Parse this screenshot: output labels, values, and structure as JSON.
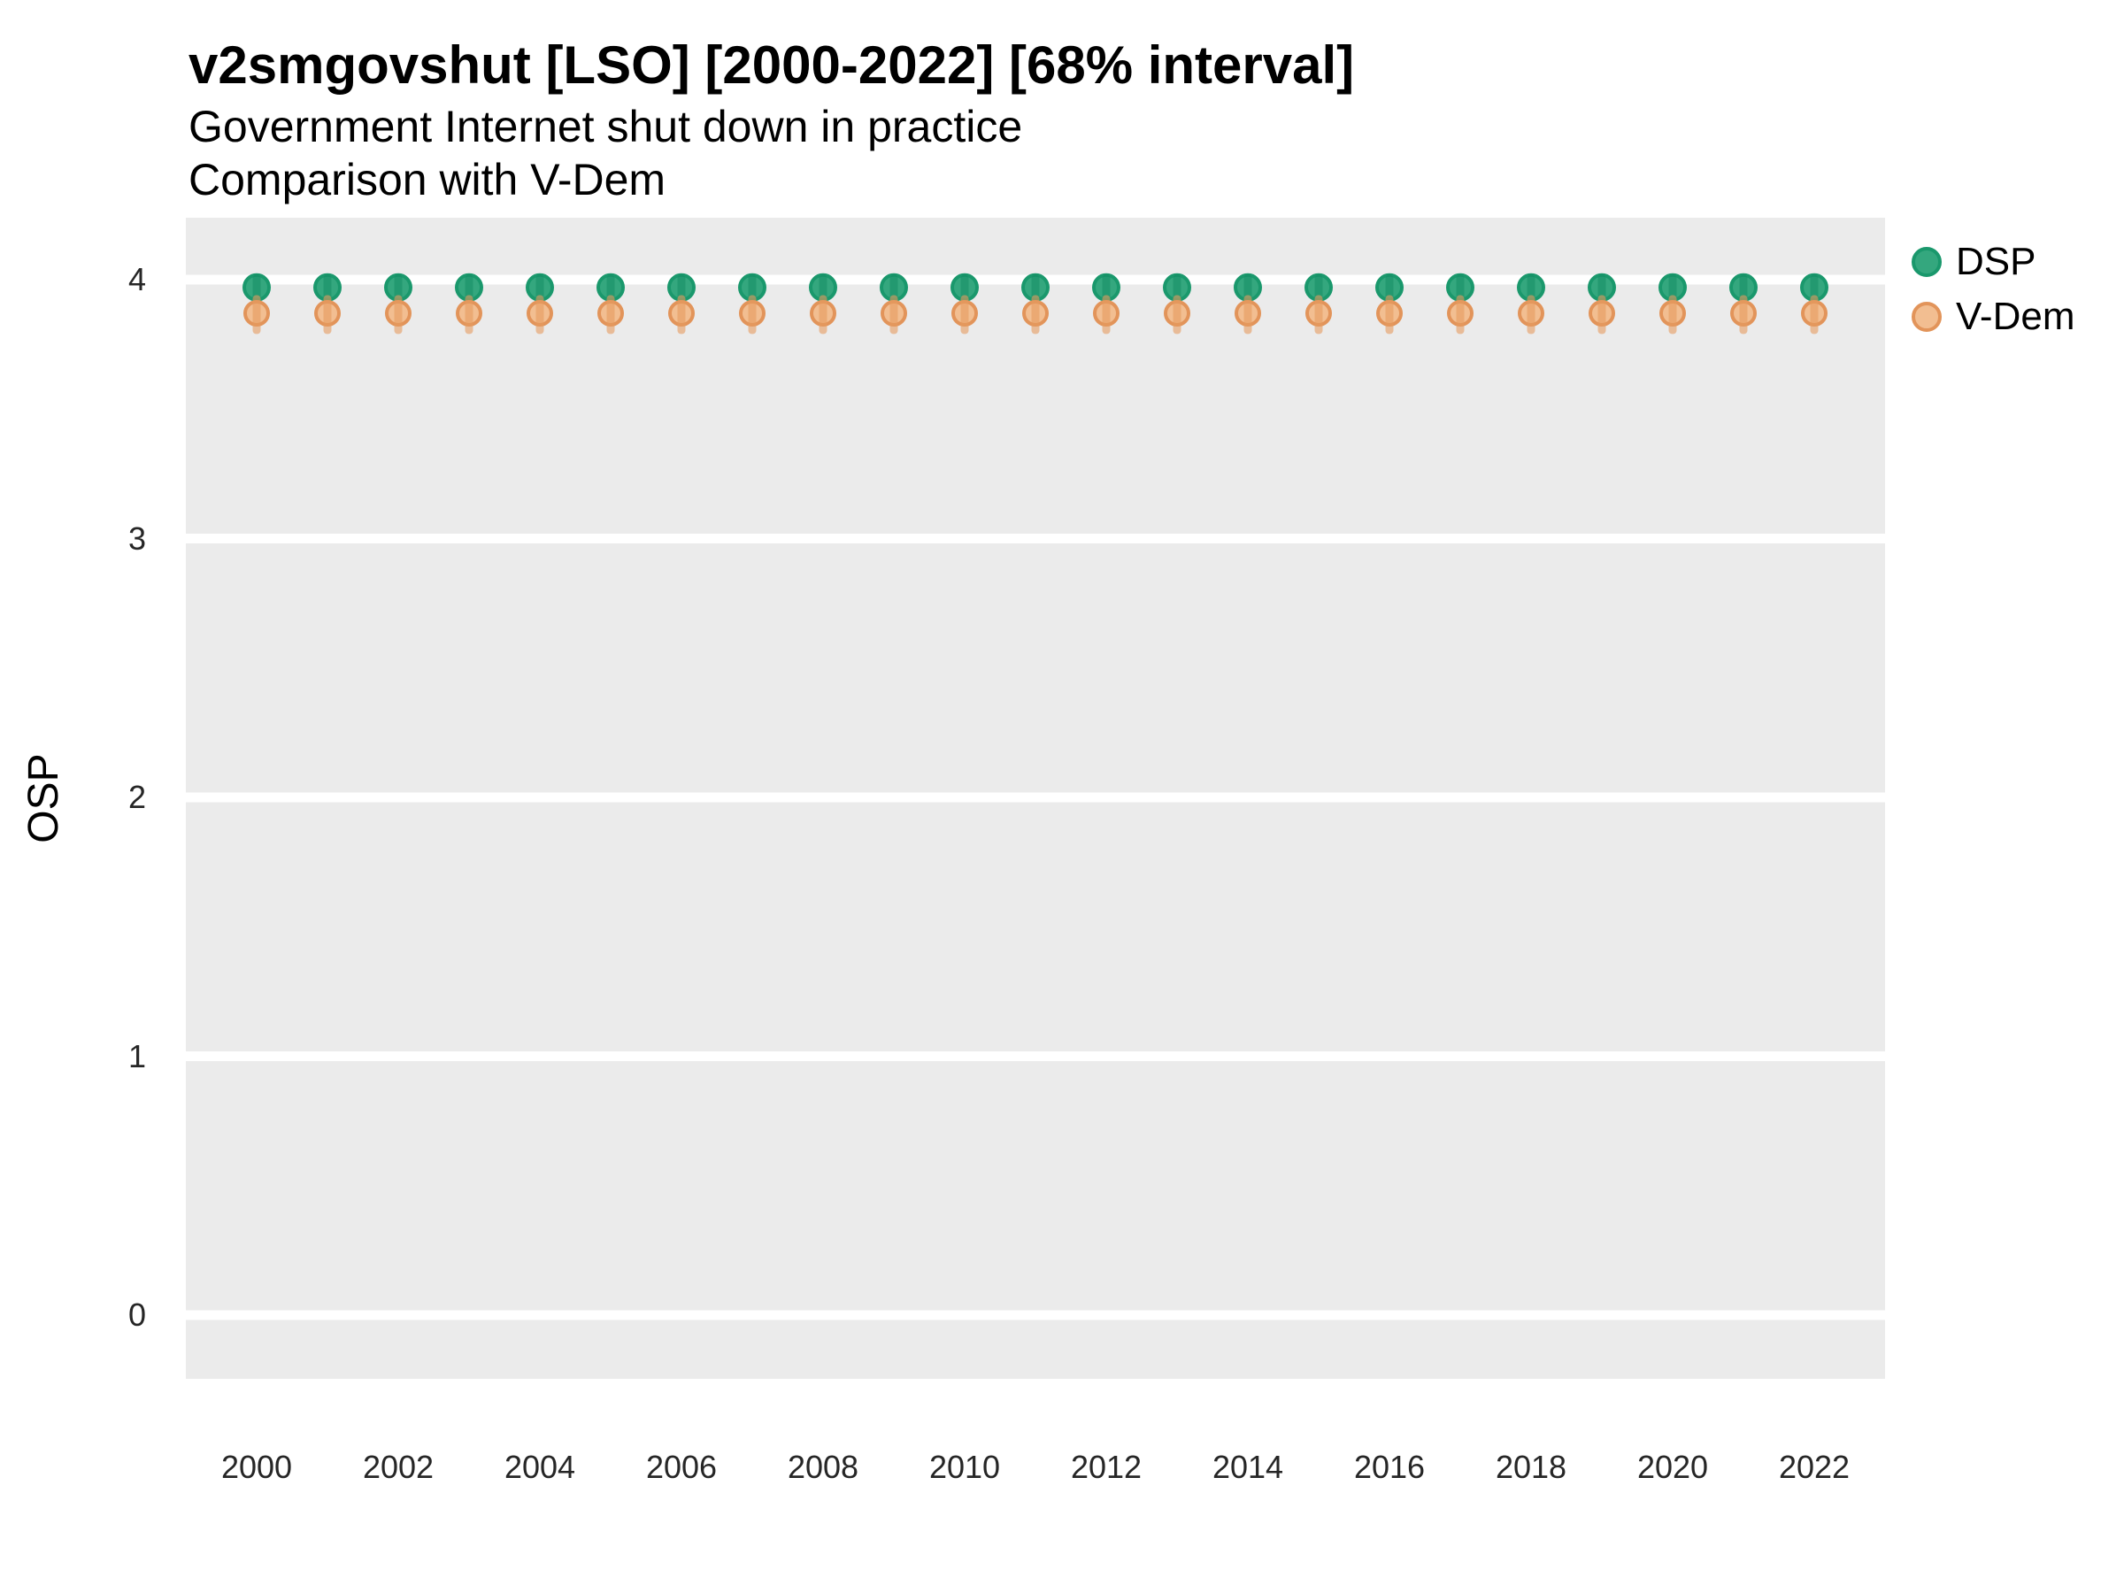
{
  "figure": {
    "title": "v2smgovshut [LSO] [2000-2022] [68% interval]",
    "subtitle": "Government Internet shut down in practice",
    "subtitle2": "Comparison with V-Dem",
    "y_axis_title": "OSP"
  },
  "legend": {
    "position": "right-top",
    "items": [
      {
        "label": "DSP",
        "fill": "#34A77E",
        "stroke": "#1A986C"
      },
      {
        "label": "V-Dem",
        "fill": "#F2BE91",
        "stroke": "#E2945A"
      }
    ]
  },
  "chart_data": {
    "type": "scatter",
    "subtype": "pointrange",
    "interval_level": "68%",
    "title": "v2smgovshut [LSO] [2000-2022] [68% interval]",
    "xlabel": "",
    "ylabel": "OSP",
    "ylim": [
      -0.25,
      4.25
    ],
    "yticks": [
      0,
      1,
      2,
      3,
      4
    ],
    "xticks": [
      2000,
      2002,
      2004,
      2006,
      2008,
      2010,
      2012,
      2014,
      2016,
      2018,
      2020,
      2022
    ],
    "grid": "horizontal-major-only",
    "panel_bg": "#EBEBEB",
    "gridline_color": "#FFFFFF",
    "x": [
      2000,
      2001,
      2002,
      2003,
      2004,
      2005,
      2006,
      2007,
      2008,
      2009,
      2010,
      2011,
      2012,
      2013,
      2014,
      2015,
      2016,
      2017,
      2018,
      2019,
      2020,
      2021,
      2022
    ],
    "series": [
      {
        "name": "DSP",
        "fill": "#34A77E",
        "stroke": "#1A986C",
        "bar": "rgba(17,140,98,0.5)",
        "est": [
          3.97,
          3.97,
          3.97,
          3.97,
          3.97,
          3.97,
          3.97,
          3.97,
          3.97,
          3.97,
          3.97,
          3.97,
          3.97,
          3.97,
          3.97,
          3.97,
          3.97,
          3.97,
          3.97,
          3.97,
          3.97,
          3.97,
          3.97
        ],
        "lo": [
          3.91,
          3.91,
          3.91,
          3.91,
          3.91,
          3.91,
          3.91,
          3.91,
          3.91,
          3.91,
          3.91,
          3.91,
          3.91,
          3.91,
          3.91,
          3.91,
          3.91,
          3.91,
          3.91,
          3.91,
          3.91,
          3.91,
          3.91
        ],
        "hi": [
          4.02,
          4.02,
          4.02,
          4.02,
          4.02,
          4.02,
          4.02,
          4.02,
          4.02,
          4.02,
          4.02,
          4.02,
          4.02,
          4.02,
          4.02,
          4.02,
          4.02,
          4.02,
          4.02,
          4.02,
          4.02,
          4.02,
          4.02
        ]
      },
      {
        "name": "V-Dem",
        "fill": "#F2BE91",
        "stroke": "#E2945A",
        "bar": "rgba(230,155,95,0.6)",
        "est": [
          3.87,
          3.87,
          3.87,
          3.87,
          3.87,
          3.87,
          3.87,
          3.87,
          3.87,
          3.87,
          3.87,
          3.87,
          3.87,
          3.87,
          3.87,
          3.87,
          3.87,
          3.87,
          3.87,
          3.87,
          3.87,
          3.87,
          3.87
        ],
        "lo": [
          3.79,
          3.79,
          3.79,
          3.79,
          3.79,
          3.79,
          3.79,
          3.79,
          3.79,
          3.79,
          3.79,
          3.79,
          3.79,
          3.79,
          3.79,
          3.79,
          3.79,
          3.79,
          3.79,
          3.79,
          3.79,
          3.79,
          3.79
        ],
        "hi": [
          3.94,
          3.94,
          3.94,
          3.94,
          3.94,
          3.94,
          3.94,
          3.94,
          3.94,
          3.94,
          3.94,
          3.94,
          3.94,
          3.94,
          3.94,
          3.94,
          3.94,
          3.94,
          3.94,
          3.94,
          3.94,
          3.94,
          3.94
        ]
      }
    ]
  }
}
